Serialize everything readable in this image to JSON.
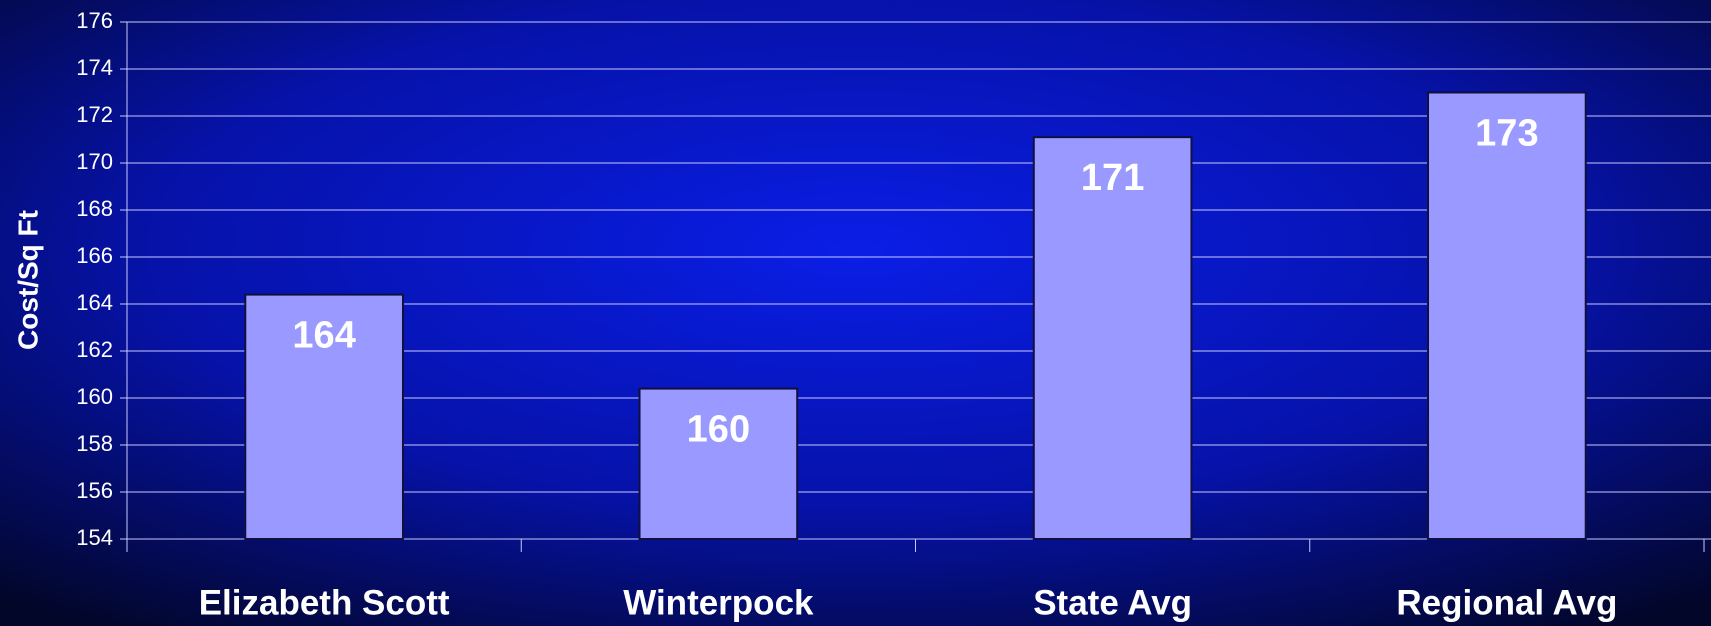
{
  "chart_data": {
    "type": "bar",
    "y_label": "Cost/Sq Ft",
    "categories": [
      "Elizabeth Scott",
      "Winterpock",
      "State Avg",
      "Regional Avg"
    ],
    "values": [
      164.4,
      160.4,
      171.1,
      173
    ],
    "value_labels": [
      "164",
      "160",
      "171",
      "173"
    ],
    "color": "#9999ff",
    "ylim": [
      154,
      176
    ],
    "yticks": [
      154,
      156,
      158,
      160,
      162,
      164,
      166,
      168,
      170,
      172,
      174,
      176
    ],
    "grid": true
  }
}
